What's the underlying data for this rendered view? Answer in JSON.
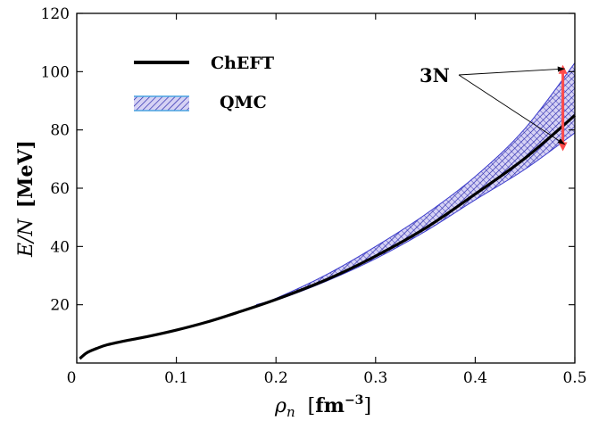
{
  "chart_data": {
    "type": "line",
    "xlabel": "ρn [fm⁻³]",
    "xlabel_parts": {
      "symbol": "ρ",
      "sub": "n",
      "unit_open": "[",
      "unit": "fm",
      "unit_exp": "−3",
      "unit_close": "]"
    },
    "ylabel": "E/N [MeV]",
    "ylabel_parts": {
      "symbol": "E/N",
      "unit": "[MeV]"
    },
    "xlim": [
      0,
      0.5
    ],
    "ylim": [
      0,
      120
    ],
    "xticks": [
      0,
      0.1,
      0.2,
      0.3,
      0.4,
      0.5
    ],
    "xtick_labels": [
      "0",
      "0.1",
      "0.2",
      "0.3",
      "0.4",
      "0.5"
    ],
    "yticks": [
      20,
      40,
      60,
      80,
      100,
      120
    ],
    "ytick_labels": [
      "20",
      "40",
      "60",
      "80",
      "100",
      "120"
    ],
    "grid": false,
    "legend": {
      "placement": "top-left",
      "entries": [
        {
          "label": "ChEFT",
          "style": "line",
          "color": "#000000"
        },
        {
          "label": "QMC",
          "style": "band",
          "color": "#3a3acc",
          "fill": "#c9c3ef",
          "edge": "#4aa3e0"
        }
      ]
    },
    "series": [
      {
        "name": "ChEFT",
        "style": "line",
        "color": "#000000",
        "x": [
          0.003,
          0.01,
          0.02,
          0.03,
          0.05,
          0.07,
          0.1,
          0.13,
          0.16,
          0.2,
          0.25,
          0.3,
          0.35,
          0.4,
          0.45,
          0.5
        ],
        "y": [
          1.5,
          3.5,
          5.0,
          6.2,
          7.7,
          9.0,
          11.3,
          14.0,
          17.2,
          21.8,
          28.5,
          36.7,
          46.3,
          58.0,
          70.3,
          85.0
        ]
      },
      {
        "name": "QMC",
        "style": "band",
        "color": "#3a3acc",
        "x": [
          0.18,
          0.2,
          0.25,
          0.3,
          0.35,
          0.4,
          0.45,
          0.5
        ],
        "y_low": [
          19.8,
          21.5,
          28.0,
          35.8,
          45.2,
          56.0,
          66.5,
          79.0
        ],
        "y_high": [
          20.0,
          22.2,
          30.2,
          40.0,
          51.0,
          64.0,
          80.5,
          103.0
        ]
      }
    ],
    "annotations": [
      {
        "text": "3N",
        "arrow_color": "#ff4a4a",
        "arrow_x": 0.488,
        "arrow_y": [
          73,
          102
        ],
        "pointer_targets": [
          {
            "x": 0.49,
            "y": 101
          },
          {
            "x": 0.49,
            "y": 75
          }
        ]
      }
    ]
  }
}
